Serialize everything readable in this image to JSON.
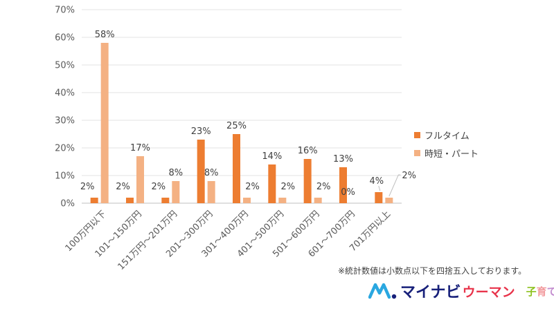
{
  "chart_data": {
    "type": "bar",
    "categories": [
      "100万円以下",
      "101～150万円",
      "151万円～201万円",
      "201～300万円",
      "301～400万円",
      "401～500万円",
      "501～600万円",
      "601～700万円",
      "701万円以上"
    ],
    "series": [
      {
        "name": "フルタイム",
        "color": "#ed7d31",
        "values": [
          2,
          2,
          2,
          23,
          25,
          14,
          16,
          13,
          4
        ]
      },
      {
        "name": "時短・パート",
        "color": "#f4b183",
        "values": [
          58,
          17,
          8,
          8,
          2,
          2,
          2,
          0,
          2
        ]
      }
    ],
    "ylim": [
      0,
      70
    ],
    "yticks": [
      0,
      10,
      20,
      30,
      40,
      50,
      60,
      70
    ],
    "tick_suffix": "%",
    "grid": true,
    "legend": "right"
  },
  "note": "※統計数値は小数点以下を四捨五入しております。",
  "brand": {
    "main": "マイナビ",
    "sub": "ウーマン",
    "kids_chars": [
      {
        "char": "子",
        "color": "#8dc21f"
      },
      {
        "char": "育",
        "color": "#f29c9f"
      },
      {
        "char": "て",
        "color": "#c48fd0"
      }
    ]
  }
}
